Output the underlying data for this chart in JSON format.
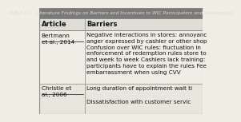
{
  "title": "TABLE G-1   Literature Findings on Barriers and Incentives to WIC Participation and Redemption",
  "col_headers": [
    "Article",
    "Barriers"
  ],
  "rows": [
    {
      "article": "Bertmann\net al., 2014",
      "barriers": "Negative interactions in stores: annoyanc\nanger expressed by cashier or other shop\nConfusion over WIC rules: fluctuation in\nenforcement of redemption rules store to\nand week to week Cashiers lack training:\nparticipants have to explain the rules Fee\nembarrassment when using CVV"
    },
    {
      "article": "Christie et\nal., 2006",
      "barriers": "Long duration of appointment wait ti\n\nDissatisfaction with customer servic"
    }
  ],
  "title_bg": "#7a7a7a",
  "title_color": "#ddddcc",
  "header_bg": "#e0ddd4",
  "header_color": "#111111",
  "row_bg": "#f0ede4",
  "row_bg2": "#e8e5dc",
  "border_color": "#888880",
  "text_color": "#111111",
  "article_underline": true,
  "col_div": 0.28,
  "title_fontsize": 4.2,
  "header_fontsize": 6.0,
  "body_fontsize": 5.2
}
